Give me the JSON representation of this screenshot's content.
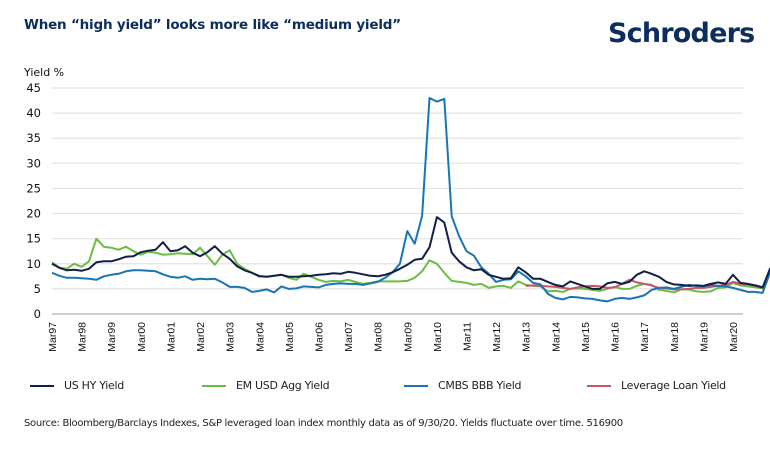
{
  "header": {
    "title": "When “high yield” looks more like “medium yield”",
    "logo": "Schroders"
  },
  "footer": {
    "source": "Source: Bloomberg/Barclays Indexes, S&P leveraged loan index monthly data as of 9/30/20. Yields fluctuate over time. 516900"
  },
  "chart_data": {
    "type": "line",
    "title": "When “high yield” looks more like “medium yield”",
    "xlabel": "",
    "ylabel": "Yield %",
    "ylim": [
      0,
      45
    ],
    "yticks": [
      0,
      5,
      10,
      15,
      20,
      25,
      30,
      35,
      40,
      45
    ],
    "grid": true,
    "legend_position": "bottom",
    "x_tick_labels": [
      "Mar97",
      "Mar98",
      "Mar99",
      "Mar00",
      "Mar01",
      "Mar02",
      "Mar03",
      "Mar04",
      "Mar05",
      "Mar06",
      "Mar07",
      "Mar08",
      "Mar09",
      "Mar10",
      "Mar11",
      "Mar12",
      "Mar13",
      "Mar14",
      "Mar15",
      "Mar16",
      "Mar17",
      "Mar18",
      "Mar19",
      "Mar20"
    ],
    "x_start": "Mar97",
    "x_frequency": "quarterly",
    "series": [
      {
        "name": "US HY Yield",
        "color": "#131f45",
        "start_index": 0,
        "values": [
          10.0,
          9.2,
          8.7,
          8.8,
          8.6,
          9.0,
          10.3,
          10.5,
          10.5,
          10.9,
          11.4,
          11.5,
          12.3,
          12.6,
          12.8,
          14.3,
          12.5,
          12.7,
          13.5,
          12.2,
          11.5,
          12.3,
          13.5,
          12.0,
          11.0,
          9.5,
          8.7,
          8.2,
          7.5,
          7.4,
          7.6,
          7.8,
          7.4,
          7.4,
          7.5,
          7.6,
          7.8,
          7.9,
          8.1,
          8.0,
          8.4,
          8.2,
          7.9,
          7.6,
          7.5,
          7.8,
          8.3,
          9.0,
          9.8,
          10.8,
          11.0,
          13.3,
          19.3,
          18.2,
          12.2,
          10.5,
          9.3,
          8.7,
          8.9,
          7.8,
          7.4,
          7.0,
          7.1,
          9.3,
          8.3,
          7.0,
          7.0,
          6.4,
          5.8,
          5.5,
          6.5,
          6.0,
          5.5,
          5.0,
          5.0,
          6.1,
          6.4,
          6.0,
          6.4,
          7.8,
          8.5,
          8.0,
          7.4,
          6.4,
          5.9,
          5.8,
          5.6,
          5.7,
          5.6,
          6.0,
          6.3,
          6.0,
          7.8,
          6.2,
          6.0,
          5.7,
          5.3,
          9.0,
          7.2,
          5.8
        ]
      },
      {
        "name": "EM USD Agg Yield",
        "color": "#6abd45",
        "start_index": 0,
        "values": [
          10.3,
          9.2,
          9.0,
          10.0,
          9.4,
          10.5,
          15.0,
          13.4,
          13.2,
          12.8,
          13.4,
          12.5,
          11.8,
          12.4,
          12.2,
          11.8,
          11.9,
          12.1,
          12.0,
          11.9,
          13.2,
          11.5,
          9.8,
          11.8,
          12.7,
          10.0,
          9.0,
          8.2,
          7.6,
          7.4,
          7.6,
          7.8,
          7.2,
          6.8,
          8.0,
          7.4,
          6.8,
          6.4,
          6.6,
          6.5,
          6.8,
          6.4,
          6.0,
          6.2,
          6.5,
          6.5,
          6.5,
          6.5,
          6.6,
          7.2,
          8.5,
          10.7,
          10.0,
          8.2,
          6.6,
          6.4,
          6.2,
          5.8,
          6.0,
          5.2,
          5.5,
          5.6,
          5.2,
          6.5,
          5.8,
          5.6,
          5.5,
          4.5,
          4.6,
          4.4,
          5.0,
          5.1,
          5.0,
          4.8,
          4.6,
          5.0,
          5.4,
          5.0,
          5.0,
          5.6,
          6.0,
          5.8,
          4.8,
          4.6,
          4.3,
          4.9,
          4.9,
          4.5,
          4.4,
          4.5,
          5.2,
          5.3,
          6.2,
          5.7,
          5.5,
          5.3,
          5.1,
          8.0,
          4.8,
          4.2
        ]
      },
      {
        "name": "CMBS BBB Yield",
        "color": "#1a75b4",
        "start_index": 0,
        "values": [
          8.2,
          7.6,
          7.2,
          7.2,
          7.1,
          7.0,
          6.8,
          7.5,
          7.8,
          8.0,
          8.5,
          8.7,
          8.7,
          8.6,
          8.5,
          7.9,
          7.4,
          7.2,
          7.5,
          6.8,
          7.0,
          6.9,
          7.0,
          6.3,
          5.4,
          5.4,
          5.2,
          4.4,
          4.6,
          4.9,
          4.3,
          5.5,
          5.0,
          5.1,
          5.5,
          5.4,
          5.3,
          5.8,
          6.0,
          6.1,
          6.0,
          6.0,
          5.8,
          6.1,
          6.4,
          7.2,
          8.3,
          10.0,
          16.5,
          14.0,
          19.5,
          43.0,
          42.3,
          42.8,
          19.5,
          15.5,
          12.5,
          11.6,
          9.3,
          8.0,
          6.4,
          6.8,
          6.9,
          8.5,
          7.5,
          6.2,
          5.9,
          4.0,
          3.2,
          2.9,
          3.4,
          3.3,
          3.1,
          3.0,
          2.7,
          2.5,
          3.0,
          3.2,
          3.0,
          3.3,
          3.7,
          4.8,
          5.2,
          5.3,
          5.0,
          5.4,
          5.8,
          5.6,
          5.5,
          5.8,
          5.6,
          5.5,
          5.2,
          4.8,
          4.4,
          4.4,
          4.2,
          8.2,
          7.9,
          6.4
        ]
      },
      {
        "name": "Leverage Loan Yield",
        "color": "#c9546e",
        "start_index": 64,
        "values": [
          5.6,
          5.7,
          5.6,
          5.5,
          5.4,
          5.2,
          5.0,
          5.3,
          5.5,
          5.6,
          5.5,
          5.2,
          5.3,
          6.0,
          6.8,
          6.3,
          6.0,
          5.7,
          5.2,
          5.1,
          4.9,
          4.9,
          5.0,
          5.2,
          5.2,
          5.4,
          5.6,
          5.8,
          6.4,
          6.0,
          5.9,
          5.6,
          5.2,
          8.4,
          6.5,
          5.3
        ]
      }
    ]
  }
}
